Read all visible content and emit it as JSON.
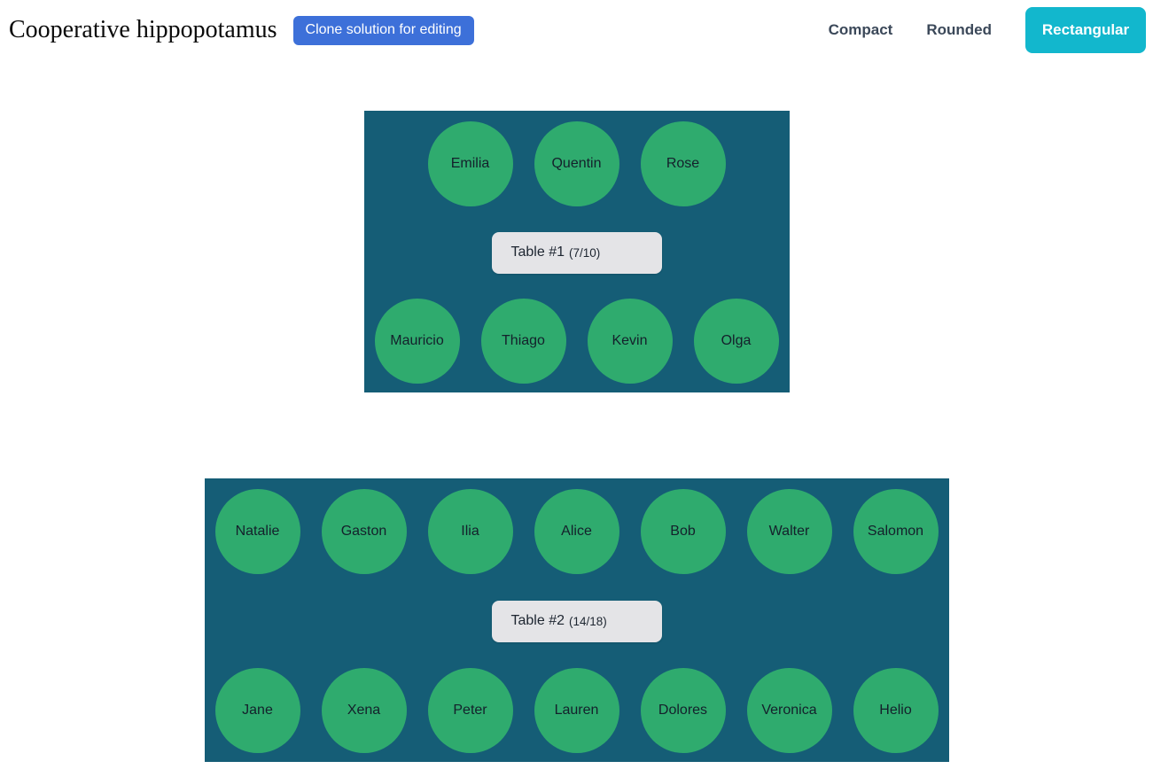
{
  "header": {
    "title": "Cooperative hippopotamus",
    "clone_button_label": "Clone solution for editing",
    "view_modes": [
      {
        "label": "Compact",
        "active": false
      },
      {
        "label": "Rounded",
        "active": false
      },
      {
        "label": "Rectangular",
        "active": true
      }
    ]
  },
  "colors": {
    "table_background": "#155d76",
    "seat_fill": "#2fab6e",
    "active_mode_background": "#12b7cd",
    "clone_button_background": "#3d70d9",
    "table_label_background": "#e4e4e7"
  },
  "tables": [
    {
      "name": "Table #1",
      "occupancy": "(7/10)",
      "top_row": [
        "Emilia",
        "Quentin",
        "Rose"
      ],
      "bottom_row": [
        "Mauricio",
        "Thiago",
        "Kevin",
        "Olga"
      ]
    },
    {
      "name": "Table #2",
      "occupancy": "(14/18)",
      "top_row": [
        "Natalie",
        "Gaston",
        "Ilia",
        "Alice",
        "Bob",
        "Walter",
        "Salomon"
      ],
      "bottom_row": [
        "Jane",
        "Xena",
        "Peter",
        "Lauren",
        "Dolores",
        "Veronica",
        "Helio"
      ]
    }
  ]
}
